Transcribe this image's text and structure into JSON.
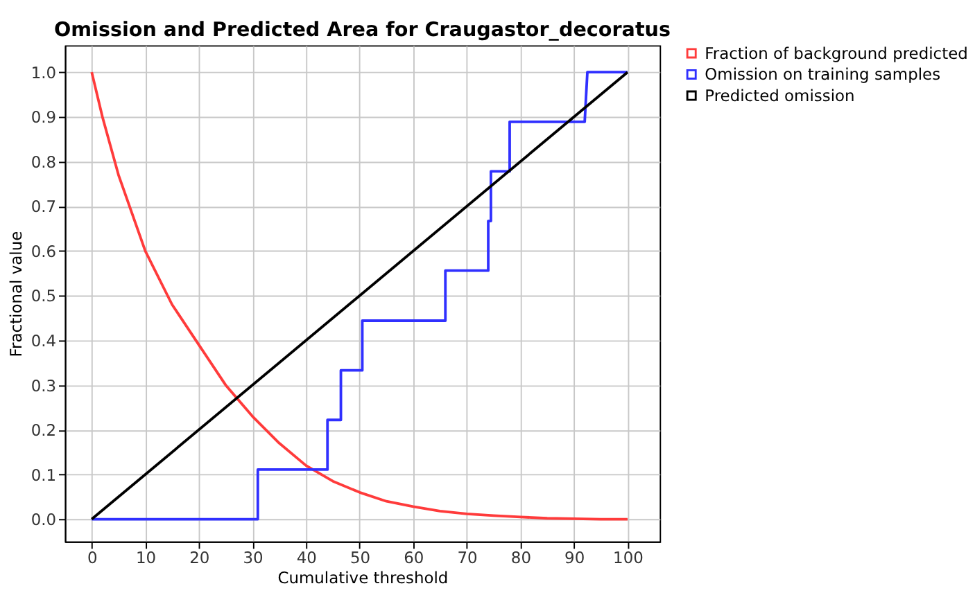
{
  "chart_data": {
    "type": "line",
    "title": "Omission and Predicted Area for Craugastor_decoratus",
    "xlabel": "Cumulative threshold",
    "ylabel": "Fractional value",
    "xlim": [
      -5,
      106
    ],
    "ylim": [
      -0.05,
      1.06
    ],
    "xticks": [
      0,
      10,
      20,
      30,
      40,
      50,
      60,
      70,
      80,
      90,
      100
    ],
    "yticks": [
      {
        "value": 0,
        "label": "0.0"
      },
      0.1,
      0.2,
      0.3,
      0.4,
      0.5,
      0.6,
      0.7,
      0.8,
      0.9,
      {
        "value": 1,
        "label": "1.0"
      }
    ],
    "grid": true,
    "legend": "top right",
    "marker": "none",
    "line_style": "solid",
    "series": [
      {
        "name": "Fraction of background predicted",
        "color": "#ff3b3b",
        "x": [
          0,
          2,
          5,
          10,
          15,
          20,
          25,
          30,
          35,
          40,
          45,
          50,
          55,
          60,
          65,
          70,
          75,
          80,
          85,
          90,
          95,
          100
        ],
        "values": [
          1.0,
          0.9,
          0.77,
          0.6,
          0.48,
          0.39,
          0.3,
          0.23,
          0.17,
          0.12,
          0.085,
          0.06,
          0.04,
          0.028,
          0.018,
          0.012,
          0.008,
          0.005,
          0.002,
          0.001,
          0.0,
          0.0
        ]
      },
      {
        "name": "Omission on training samples",
        "color": "#3030ff",
        "x": [
          0,
          31,
          31,
          44,
          44,
          46.5,
          46.5,
          50.5,
          50.5,
          66,
          66,
          74,
          74,
          74.5,
          74.5,
          78,
          78,
          92,
          92.5,
          100
        ],
        "values": [
          0,
          0,
          0.111,
          0.111,
          0.222,
          0.222,
          0.333,
          0.333,
          0.444,
          0.444,
          0.556,
          0.556,
          0.667,
          0.667,
          0.778,
          0.778,
          0.889,
          0.889,
          1.0,
          1.0
        ]
      },
      {
        "name": "Predicted omission",
        "color": "#000000",
        "x": [
          0,
          100
        ],
        "values": [
          0,
          1
        ]
      }
    ]
  }
}
